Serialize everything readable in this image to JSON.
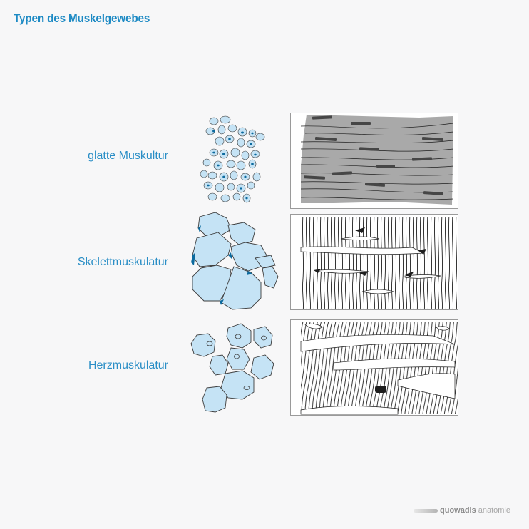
{
  "title": "Typen des Muskelgewebes",
  "rows": [
    {
      "label": "glatte Muskultur"
    },
    {
      "label": "Skelettmuskulatur"
    },
    {
      "label": "Herzmuskulatur"
    }
  ],
  "logo": {
    "brand": "quowadis",
    "product": "anatomie"
  },
  "colors": {
    "accent": "#1d8ac4",
    "cell_fill": "#c5e3f5",
    "cell_stroke": "#3c3c3c",
    "nucleus": "#0c6a9e",
    "smooth_tissue": "#a9a9a9"
  }
}
